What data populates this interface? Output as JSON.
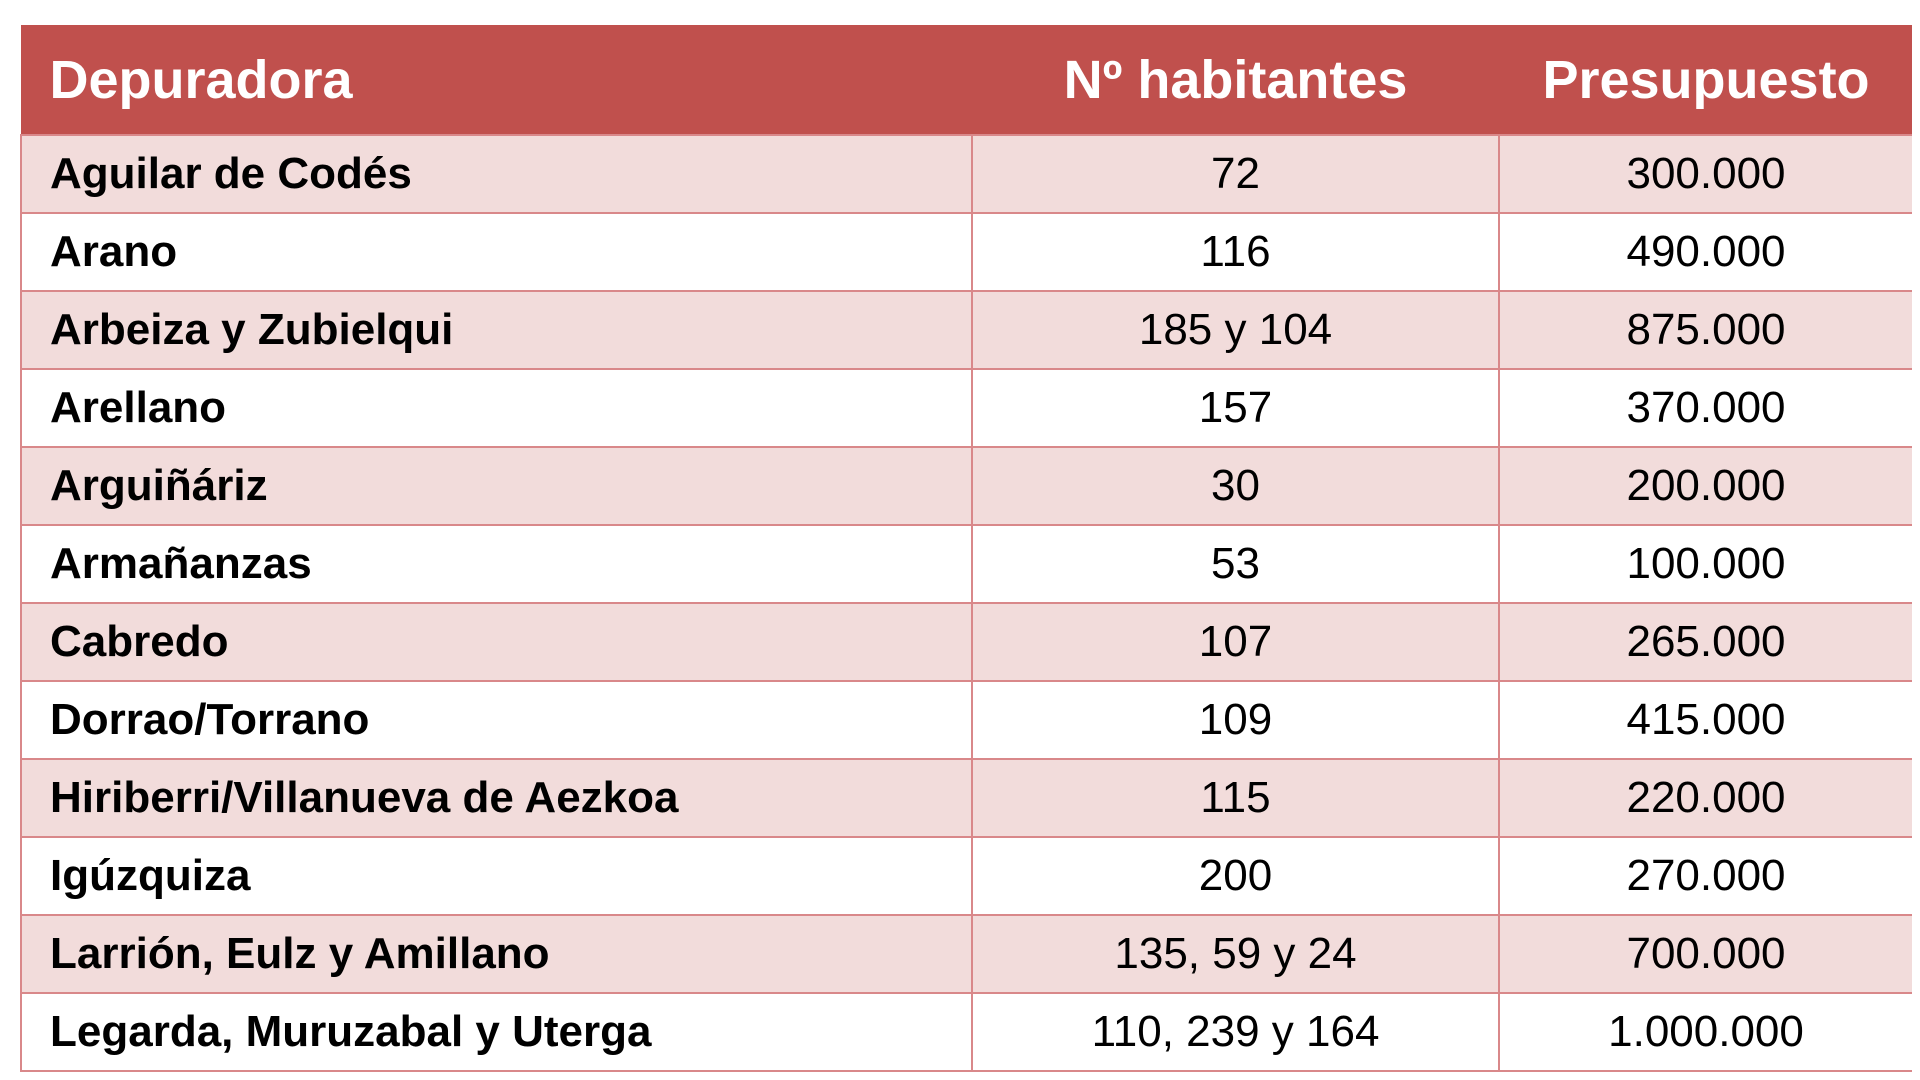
{
  "table": {
    "headers": {
      "depuradora": "Depuradora",
      "habitantes": "Nº habitantes",
      "presupuesto": "Presupuesto"
    },
    "rows": [
      {
        "depuradora": "Aguilar de Codés",
        "habitantes": "72",
        "presupuesto": "300.000"
      },
      {
        "depuradora": "Arano",
        "habitantes": "116",
        "presupuesto": "490.000"
      },
      {
        "depuradora": "Arbeiza y Zubielqui",
        "habitantes": "185 y 104",
        "presupuesto": "875.000"
      },
      {
        "depuradora": "Arellano",
        "habitantes": "157",
        "presupuesto": "370.000"
      },
      {
        "depuradora": "Arguiñáriz",
        "habitantes": "30",
        "presupuesto": "200.000"
      },
      {
        "depuradora": "Armañanzas",
        "habitantes": "53",
        "presupuesto": "100.000"
      },
      {
        "depuradora": "Cabredo",
        "habitantes": "107",
        "presupuesto": "265.000"
      },
      {
        "depuradora": "Dorrao/Torrano",
        "habitantes": "109",
        "presupuesto": "415.000"
      },
      {
        "depuradora": "Hiriberri/Villanueva de Aezkoa",
        "habitantes": "115",
        "presupuesto": "220.000"
      },
      {
        "depuradora": "Igúzquiza",
        "habitantes": "200",
        "presupuesto": "270.000"
      },
      {
        "depuradora": "Larrión, Eulz y Amillano",
        "habitantes": "135, 59 y 24",
        "presupuesto": "700.000"
      },
      {
        "depuradora": "Legarda, Muruzabal y Uterga",
        "habitantes": "110, 239 y 164",
        "presupuesto": "1.000.000"
      }
    ]
  },
  "colors": {
    "header_bg": "#c0504d",
    "header_text": "#ffffff",
    "row_band": "#f2dcdb",
    "grid": "#d9888a"
  }
}
